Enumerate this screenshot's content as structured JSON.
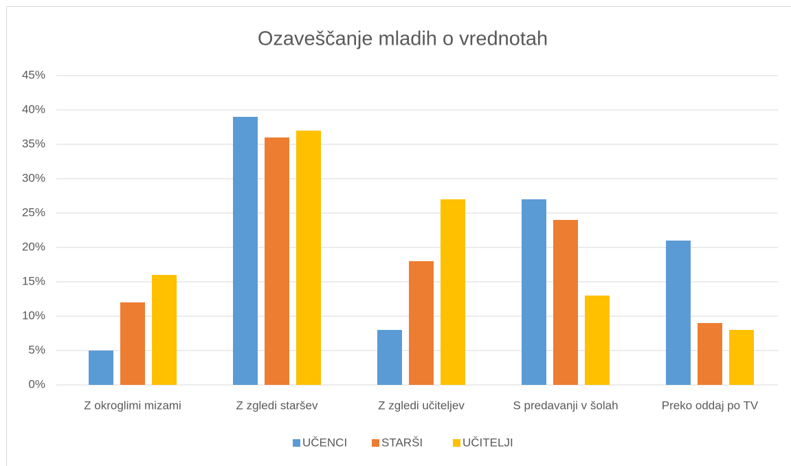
{
  "chart_data": {
    "type": "bar",
    "title": "Ozaveščanje mladih o vrednotah",
    "categories": [
      "Z okroglimi mizami",
      "Z zgledi staršev",
      "Z zgledi učiteljev",
      "S predavanji v šolah",
      "Preko oddaj po TV"
    ],
    "series": [
      {
        "name": "UČENCI",
        "color": "#5b9bd5",
        "values": [
          5,
          39,
          8,
          27,
          21
        ]
      },
      {
        "name": "STARŠI",
        "color": "#ed7d31",
        "values": [
          12,
          36,
          18,
          24,
          9
        ]
      },
      {
        "name": "UČITELJI",
        "color": "#ffc000",
        "values": [
          16,
          37,
          27,
          13,
          8
        ]
      }
    ],
    "ylim": [
      0,
      45
    ],
    "yticks": [
      {
        "value": 0,
        "label": "0%"
      },
      {
        "value": 5,
        "label": "5%"
      },
      {
        "value": 10,
        "label": "10%"
      },
      {
        "value": 15,
        "label": "15%"
      },
      {
        "value": 20,
        "label": "20%"
      },
      {
        "value": 25,
        "label": "25%"
      },
      {
        "value": 30,
        "label": "30%"
      },
      {
        "value": 35,
        "label": "35%"
      },
      {
        "value": 40,
        "label": "40%"
      },
      {
        "value": 45,
        "label": "45%"
      }
    ],
    "grid": true,
    "legend": "bottom"
  }
}
